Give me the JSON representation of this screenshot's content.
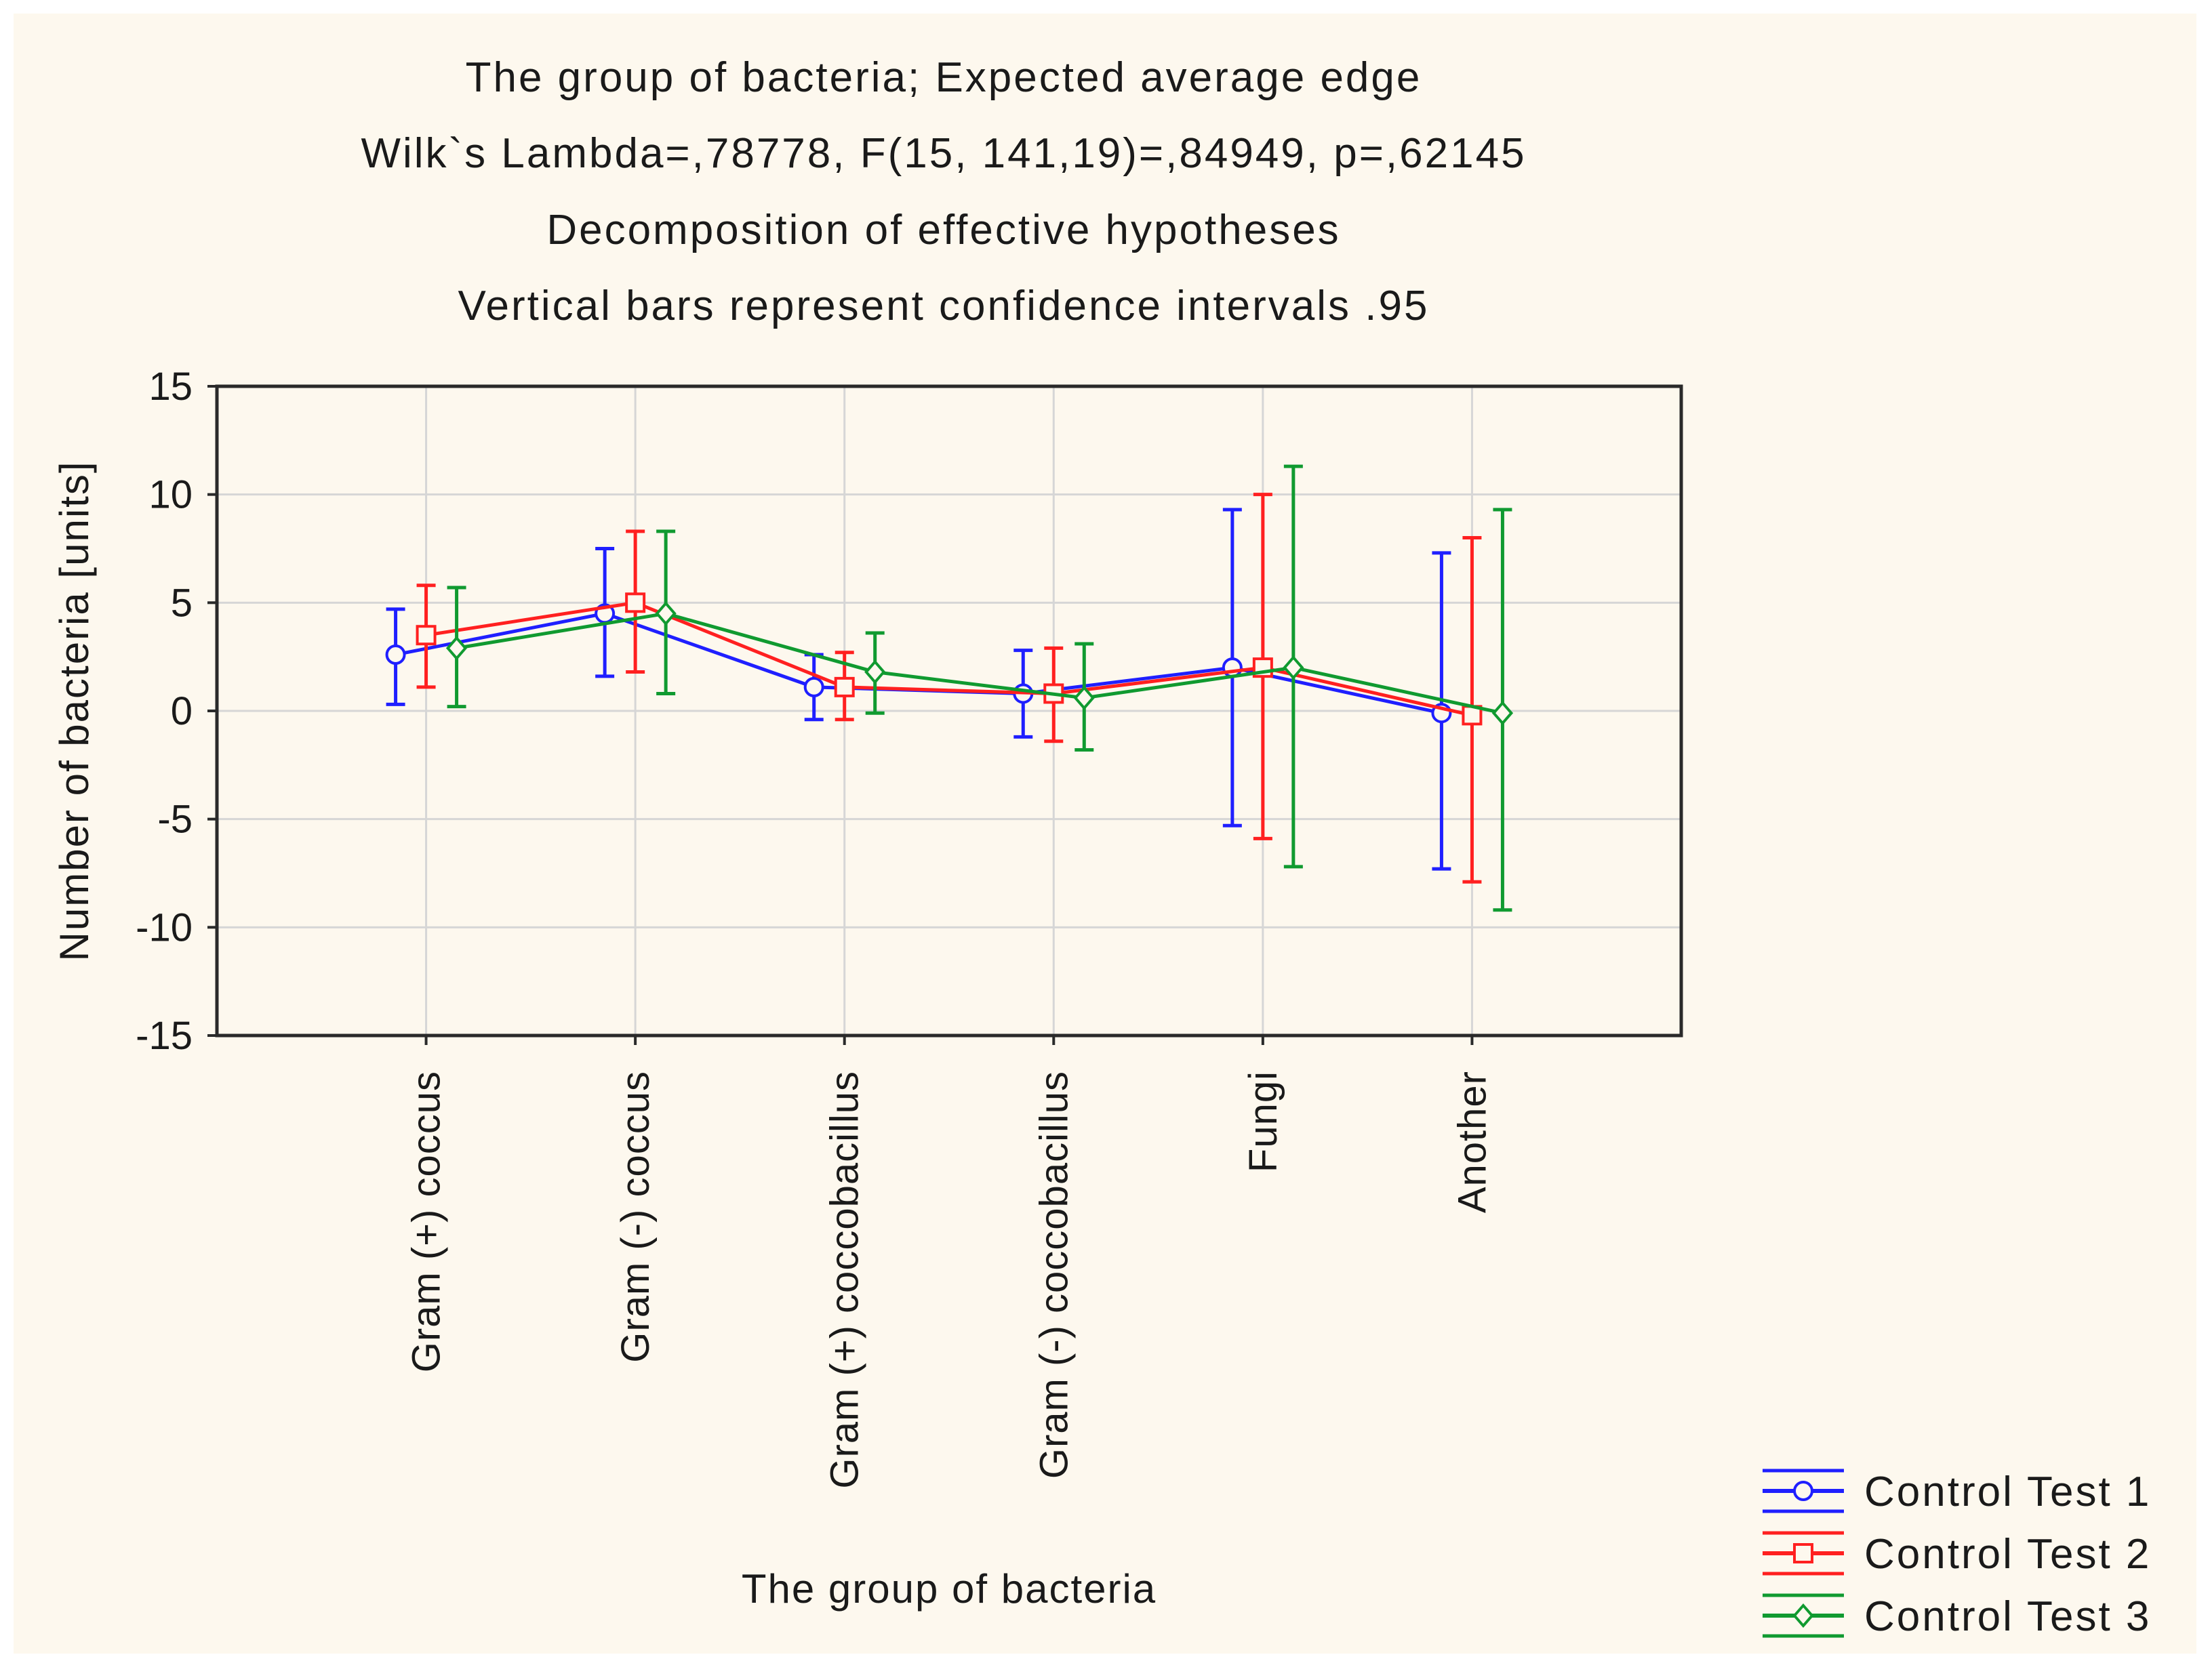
{
  "chart_data": {
    "type": "line",
    "title_lines": [
      "The group of bacteria; Expected average edge",
      "Wilk`s Lambda=,78778, F(15, 141,19)=,84949, p=,62145",
      "Decomposition of effective hypotheses",
      "Vertical bars represent confidence intervals .95"
    ],
    "xlabel": "The group of bacteria",
    "ylabel": "Number of bacteria [units]",
    "ylim": [
      -15,
      15
    ],
    "yticks": [
      15,
      10,
      5,
      0,
      -5,
      -10,
      -15
    ],
    "ytick_labels": [
      "15",
      "10",
      "5",
      "0",
      "-5",
      "-10",
      "-15"
    ],
    "categories": [
      "Gram (+) coccus",
      "Gram (-) coccus",
      "Gram (+) coccobacillus",
      "Gram (-) coccobacillus",
      "Fungi",
      "Another"
    ],
    "grid": true,
    "error_bars": "confidence intervals .95",
    "legend_position": "bottom-right",
    "series": [
      {
        "name": "Control Test 1",
        "color": "#1f1fff",
        "marker": "circle",
        "values": [
          2.6,
          4.5,
          1.1,
          0.8,
          2.0,
          -0.1
        ],
        "lower": [
          0.3,
          1.6,
          -0.4,
          -1.2,
          -5.3,
          -7.3
        ],
        "upper": [
          4.7,
          7.5,
          2.6,
          2.8,
          9.3,
          7.3
        ]
      },
      {
        "name": "Control Test 2",
        "color": "#ff2020",
        "marker": "square",
        "values": [
          3.5,
          5.0,
          1.1,
          0.8,
          2.0,
          -0.2
        ],
        "lower": [
          1.1,
          1.8,
          -0.4,
          -1.4,
          -5.9,
          -7.9
        ],
        "upper": [
          5.8,
          8.3,
          2.7,
          2.9,
          10.0,
          8.0
        ]
      },
      {
        "name": "Control Test 3",
        "color": "#109a30",
        "marker": "diamond",
        "values": [
          2.9,
          4.5,
          1.8,
          0.6,
          2.0,
          -0.1
        ],
        "lower": [
          0.2,
          0.8,
          -0.1,
          -1.8,
          -7.2,
          -9.2
        ],
        "upper": [
          5.7,
          8.3,
          3.6,
          3.1,
          11.3,
          9.3
        ]
      }
    ]
  }
}
